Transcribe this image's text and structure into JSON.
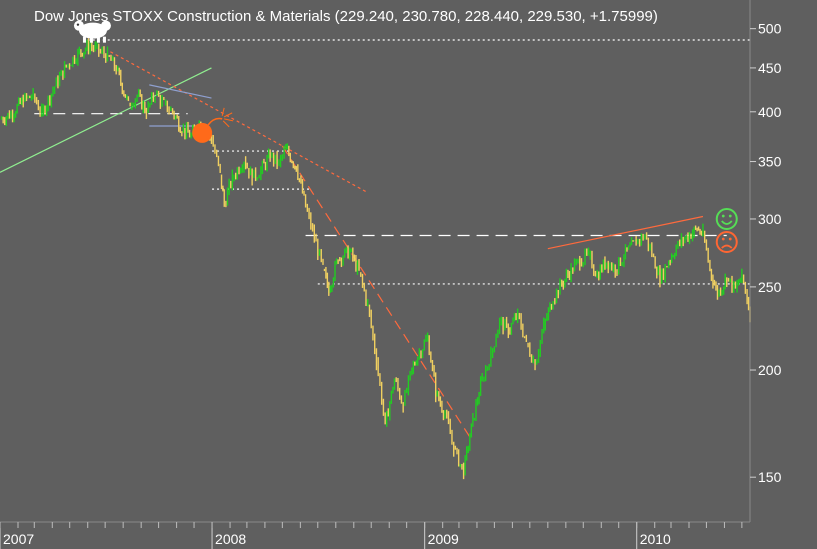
{
  "chart_data": {
    "type": "line",
    "title": "Dow Jones STOXX Construction & Materials (229.240, 230.780, 228.440, 229.530, +1.75999)",
    "xlabel": "",
    "ylabel": "",
    "y_scale": "log",
    "ylim": [
      133,
      540
    ],
    "xlim": [
      "2007-01-01",
      "2010-07-15"
    ],
    "x_tick_labels": [
      "2007",
      "2008",
      "2009",
      "2010"
    ],
    "x_tick_dates": [
      "2007-01-01",
      "2008-01-01",
      "2009-01-01",
      "2010-01-01"
    ],
    "y_ticks": [
      150,
      200,
      250,
      300,
      350,
      400,
      450,
      500
    ],
    "grid": false,
    "colors": {
      "background": "#5f5f5f",
      "up": "#22cc22",
      "down": "#f0d060",
      "text": "#ffffff",
      "reference_line": "#ffffff",
      "support_trend": "#90ee90",
      "resistance_trend": "#ff6a3d",
      "channel_line": "#8fa0d0",
      "bomb": "#ff6a1a",
      "smiley": "#55dd55",
      "frown": "#ff6633"
    },
    "series": [
      {
        "values": [
          [
            "2007-01-01",
            392
          ],
          [
            "2007-01-20",
            398
          ],
          [
            "2007-02-10",
            412
          ],
          [
            "2007-02-27",
            418
          ],
          [
            "2007-03-14",
            398
          ],
          [
            "2007-04-05",
            428
          ],
          [
            "2007-04-25",
            452
          ],
          [
            "2007-05-15",
            468
          ],
          [
            "2007-06-05",
            478
          ],
          [
            "2007-06-20",
            470
          ],
          [
            "2007-07-05",
            465
          ],
          [
            "2007-07-20",
            448
          ],
          [
            "2007-08-10",
            408
          ],
          [
            "2007-08-25",
            418
          ],
          [
            "2007-09-10",
            400
          ],
          [
            "2007-09-25",
            420
          ],
          [
            "2007-10-10",
            408
          ],
          [
            "2007-10-25",
            400
          ],
          [
            "2007-11-10",
            382
          ],
          [
            "2007-11-26",
            375
          ],
          [
            "2007-12-10",
            388
          ],
          [
            "2007-12-31",
            372
          ],
          [
            "2008-01-15",
            338
          ],
          [
            "2008-01-22",
            312
          ],
          [
            "2008-02-05",
            335
          ],
          [
            "2008-02-25",
            352
          ],
          [
            "2008-03-10",
            335
          ],
          [
            "2008-03-25",
            342
          ],
          [
            "2008-04-10",
            355
          ],
          [
            "2008-04-25",
            348
          ],
          [
            "2008-05-07",
            362
          ],
          [
            "2008-05-25",
            345
          ],
          [
            "2008-06-10",
            310
          ],
          [
            "2008-06-25",
            285
          ],
          [
            "2008-07-10",
            262
          ],
          [
            "2008-07-20",
            248
          ],
          [
            "2008-08-05",
            270
          ],
          [
            "2008-08-25",
            275
          ],
          [
            "2008-09-10",
            260
          ],
          [
            "2008-09-25",
            238
          ],
          [
            "2008-10-10",
            205
          ],
          [
            "2008-10-25",
            172
          ],
          [
            "2008-11-10",
            195
          ],
          [
            "2008-11-25",
            182
          ],
          [
            "2008-12-10",
            200
          ],
          [
            "2008-12-20",
            208
          ],
          [
            "2009-01-06",
            218
          ],
          [
            "2009-01-20",
            188
          ],
          [
            "2009-02-05",
            178
          ],
          [
            "2009-02-20",
            162
          ],
          [
            "2009-03-09",
            152
          ],
          [
            "2009-03-25",
            175
          ],
          [
            "2009-04-10",
            195
          ],
          [
            "2009-04-25",
            208
          ],
          [
            "2009-05-10",
            228
          ],
          [
            "2009-05-25",
            222
          ],
          [
            "2009-06-10",
            232
          ],
          [
            "2009-06-25",
            215
          ],
          [
            "2009-07-10",
            203
          ],
          [
            "2009-07-25",
            225
          ],
          [
            "2009-08-10",
            242
          ],
          [
            "2009-08-25",
            252
          ],
          [
            "2009-09-10",
            262
          ],
          [
            "2009-09-25",
            268
          ],
          [
            "2009-10-10",
            272
          ],
          [
            "2009-10-25",
            258
          ],
          [
            "2009-11-10",
            268
          ],
          [
            "2009-11-25",
            262
          ],
          [
            "2009-12-10",
            272
          ],
          [
            "2009-12-31",
            282
          ],
          [
            "2010-01-15",
            287
          ],
          [
            "2010-01-30",
            270
          ],
          [
            "2010-02-10",
            255
          ],
          [
            "2010-02-25",
            268
          ],
          [
            "2010-03-10",
            278
          ],
          [
            "2010-03-25",
            285
          ],
          [
            "2010-04-15",
            292
          ],
          [
            "2010-04-25",
            288
          ],
          [
            "2010-05-07",
            262
          ],
          [
            "2010-05-20",
            245
          ],
          [
            "2010-06-05",
            256
          ],
          [
            "2010-06-20",
            248
          ],
          [
            "2010-07-01",
            258
          ],
          [
            "2010-07-10",
            242
          ],
          [
            "2010-07-15",
            232
          ]
        ]
      }
    ],
    "annotations": [
      {
        "kind": "hline-dotted",
        "y": 485,
        "from": "2007-06-01",
        "to": "2010-07-15",
        "color": "#ffffff"
      },
      {
        "kind": "hline-dashed",
        "y": 398,
        "from": "2007-03-01",
        "to": "2007-11-20",
        "color": "#ffffff"
      },
      {
        "kind": "hline-dotted",
        "y": 360,
        "from": "2008-01-01",
        "to": "2008-05-15",
        "color": "#ffffff"
      },
      {
        "kind": "hline-dotted",
        "y": 325,
        "from": "2008-01-01",
        "to": "2008-06-20",
        "color": "#ffffff"
      },
      {
        "kind": "hline-dashed",
        "y": 287,
        "from": "2008-06-10",
        "to": "2010-06-05",
        "color": "#ffffff"
      },
      {
        "kind": "hline-dotted",
        "y": 252,
        "from": "2008-07-01",
        "to": "2010-07-15",
        "color": "#ffffff"
      },
      {
        "kind": "trend",
        "style": "solid",
        "color": "#90ee90",
        "from": [
          "2007-01-01",
          340
        ],
        "to": [
          "2007-12-31",
          450
        ]
      },
      {
        "kind": "trend",
        "style": "dotted",
        "color": "#ff6a3d",
        "from": [
          "2007-07-10",
          470
        ],
        "to": [
          "2008-09-25",
          322
        ]
      },
      {
        "kind": "trend",
        "style": "dashed",
        "color": "#ff6a3d",
        "from": [
          "2008-05-01",
          365
        ],
        "to": [
          "2009-03-25",
          165
        ]
      },
      {
        "kind": "trend",
        "style": "solid",
        "color": "#ff6a3d",
        "from": [
          "2009-08-01",
          277
        ],
        "to": [
          "2010-04-25",
          302
        ]
      },
      {
        "kind": "trend",
        "style": "solid",
        "color": "#8fa0d0",
        "from": [
          "2007-09-15",
          430
        ],
        "to": [
          "2007-12-31",
          415
        ]
      },
      {
        "kind": "trend",
        "style": "solid",
        "color": "#8fa0d0",
        "from": [
          "2007-09-15",
          385
        ],
        "to": [
          "2007-12-20",
          385
        ]
      }
    ],
    "icons": [
      {
        "name": "bear-bull-icon",
        "at": [
          "2007-06-10",
          500
        ]
      },
      {
        "name": "bomb-icon",
        "at": [
          "2007-12-15",
          378
        ]
      },
      {
        "name": "smiley-icon",
        "at": [
          "2010-06-05",
          300
        ]
      },
      {
        "name": "frown-icon",
        "at": [
          "2010-06-05",
          282
        ]
      }
    ]
  }
}
